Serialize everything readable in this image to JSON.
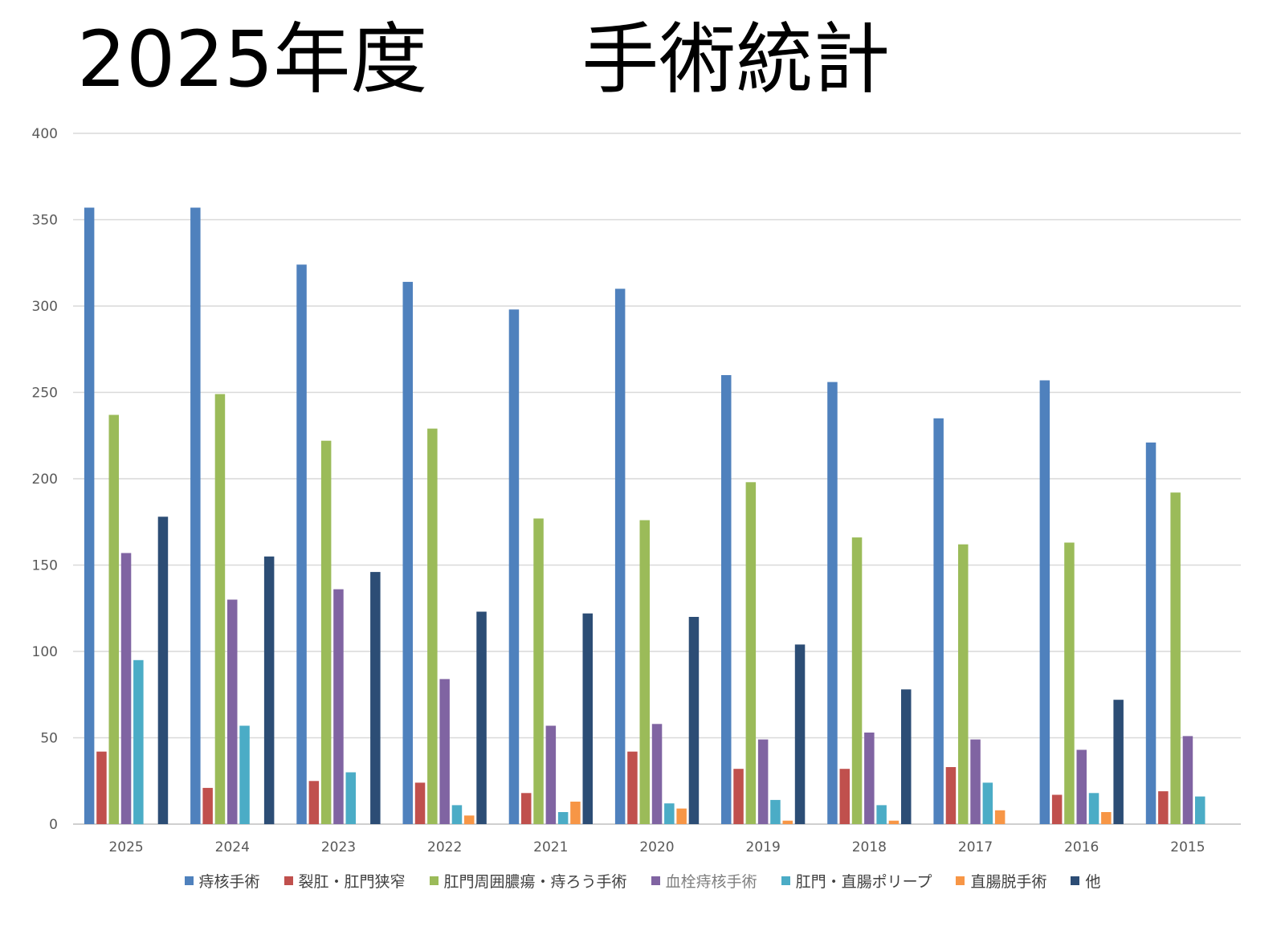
{
  "title": "2025年度　　手術統計",
  "chart_data": {
    "type": "bar",
    "categories": [
      "2025",
      "2024",
      "2023",
      "2022",
      "2021",
      "2020",
      "2019",
      "2018",
      "2017",
      "2016",
      "2015"
    ],
    "ylim": [
      0,
      400
    ],
    "yticks": [
      0,
      50,
      100,
      150,
      200,
      250,
      300,
      350,
      400
    ],
    "grid": true,
    "legend_position": "bottom",
    "series": [
      {
        "name": "痔核手術",
        "color": "#4f81bd",
        "values": [
          357,
          357,
          324,
          314,
          298,
          310,
          260,
          256,
          235,
          257,
          221
        ]
      },
      {
        "name": "裂肛・肛門狭窄",
        "color": "#c0504d",
        "values": [
          42,
          21,
          25,
          24,
          18,
          42,
          32,
          32,
          33,
          17,
          19
        ]
      },
      {
        "name": "肛門周囲膿瘍・痔ろう手術",
        "color": "#9bbb59",
        "values": [
          237,
          249,
          222,
          229,
          177,
          176,
          198,
          166,
          162,
          163,
          192
        ]
      },
      {
        "name": "血栓痔核手術",
        "color": "#8064a2",
        "values": [
          157,
          130,
          136,
          84,
          57,
          58,
          49,
          53,
          49,
          43,
          51
        ]
      },
      {
        "name": "肛門・直腸ポリープ",
        "color": "#4bacc6",
        "values": [
          95,
          57,
          30,
          11,
          7,
          12,
          14,
          11,
          24,
          18,
          16
        ]
      },
      {
        "name": "直腸脱手術",
        "color": "#f79646",
        "values": [
          0,
          0,
          0,
          5,
          13,
          9,
          2,
          2,
          8,
          7,
          0
        ]
      },
      {
        "name": "他",
        "color": "#2c4d75",
        "values": [
          178,
          155,
          146,
          123,
          122,
          120,
          104,
          78,
          0,
          72,
          0
        ]
      }
    ]
  }
}
